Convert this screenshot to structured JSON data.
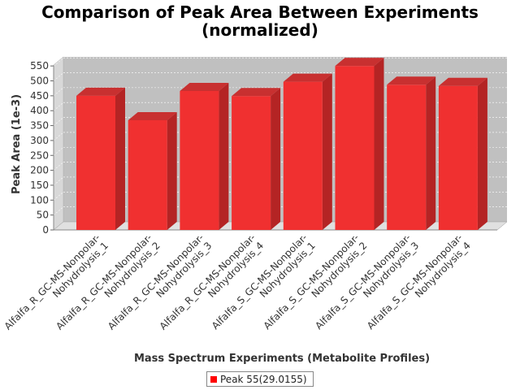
{
  "chart_data": {
    "type": "bar",
    "title_lines": [
      "Comparison of Peak Area Between Experiments",
      "(normalized)"
    ],
    "xlabel": "Mass Spectrum Experiments (Metabolite Profiles)",
    "ylabel": "Peak Area (1e-3)",
    "ylim": [
      0,
      575
    ],
    "yticks": [
      0,
      50,
      100,
      150,
      200,
      250,
      300,
      350,
      400,
      450,
      500,
      550
    ],
    "grid": true,
    "legend_position": "bottom",
    "categories": [
      [
        "Alfalfa_R_GC-MS-Nonpolar-",
        "Nohydrolysis_1"
      ],
      [
        "Alfalfa_R_GC-MS-Nonpolar-",
        "Nohydrolysis_2"
      ],
      [
        "Alfalfa_R_GC-MS-Nonpolar-",
        "Nohydrolysis_3"
      ],
      [
        "Alfalfa_R_GC-MS-Nonpolar-",
        "Nohydrolysis_4"
      ],
      [
        "Alfalfa_S_GC-MS-Nonpolar-",
        "Nohydrolysis_1"
      ],
      [
        "Alfalfa_S_GC-MS-Nonpolar-",
        "Nohydrolysis_2"
      ],
      [
        "Alfalfa_S_GC-MS-Nonpolar-",
        "Nohydrolysis_3"
      ],
      [
        "Alfalfa_S_GC-MS-Nonpolar-",
        "Nohydrolysis_4"
      ]
    ],
    "series": [
      {
        "name": "Peak 55(29.0155)",
        "color": "#ff0000",
        "values": [
          450,
          368,
          466,
          449,
          497,
          550,
          487,
          483
        ]
      }
    ]
  }
}
